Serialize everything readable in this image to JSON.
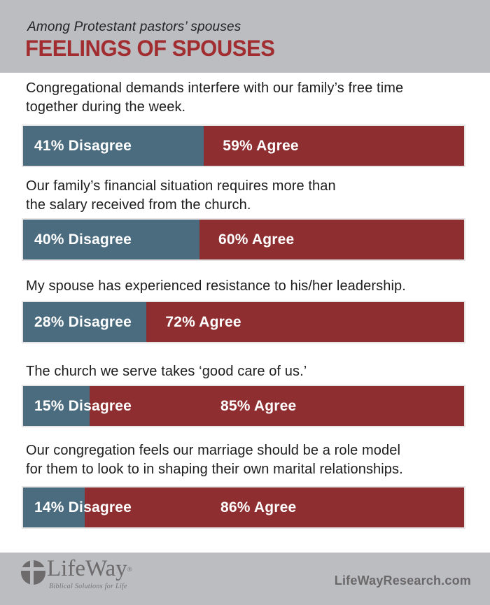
{
  "header": {
    "subtitle": "Among Protestant pastors’ spouses",
    "title": "FEELINGS OF SPOUSES"
  },
  "chart_data": {
    "type": "bar",
    "orientation": "horizontal",
    "stacked": true,
    "unit": "percent",
    "xlim": [
      0,
      100
    ],
    "legend": [
      "Disagree",
      "Agree"
    ],
    "legend_position": "in-bar-labels",
    "grid": false,
    "colors": {
      "disagree": "#4b6c7f",
      "agree": "#8e2e30"
    },
    "categories": [
      "Congregational demands interfere with our family’s free time together during the week.",
      "Our family’s financial situation requires more than the salary received from the church.",
      "My spouse has experienced resistance to his/her leadership.",
      "The church we serve takes ‘good care of us.’",
      "Our congregation feels our marriage should be a role model for them to look to in shaping their own marital relationships."
    ],
    "series": [
      {
        "name": "Disagree",
        "values": [
          41,
          40,
          28,
          15,
          14
        ]
      },
      {
        "name": "Agree",
        "values": [
          59,
          60,
          72,
          85,
          86
        ]
      }
    ],
    "bars": [
      {
        "question_lines": [
          "Congregational demands interfere with our family’s free time",
          "together during the week."
        ],
        "disagree": 41,
        "agree": 59,
        "disagree_label": "41% Disagree",
        "agree_label": "59% Agree"
      },
      {
        "question_lines": [
          "Our family’s financial situation requires more than",
          "the salary received from the church."
        ],
        "disagree": 40,
        "agree": 60,
        "disagree_label": "40% Disagree",
        "agree_label": "60% Agree"
      },
      {
        "question_lines": [
          "My spouse has experienced resistance to his/her leadership."
        ],
        "disagree": 28,
        "agree": 72,
        "disagree_label": "28% Disagree",
        "agree_label": "72% Agree"
      },
      {
        "question_lines": [
          "The church we serve takes ‘good care of us.’"
        ],
        "disagree": 15,
        "agree": 85,
        "disagree_label": "15% Disagree",
        "agree_label": "85% Agree"
      },
      {
        "question_lines": [
          "Our congregation feels our marriage should be a role model",
          "for them to look to in shaping their own marital relationships."
        ],
        "disagree": 14,
        "agree": 86,
        "disagree_label": "14% Disagree",
        "agree_label": "86% Agree"
      }
    ]
  },
  "footer": {
    "logo_name": "LifeWay",
    "logo_registered": "®",
    "logo_tagline": "Biblical Solutions for Life",
    "website": "LifeWayResearch.com"
  }
}
